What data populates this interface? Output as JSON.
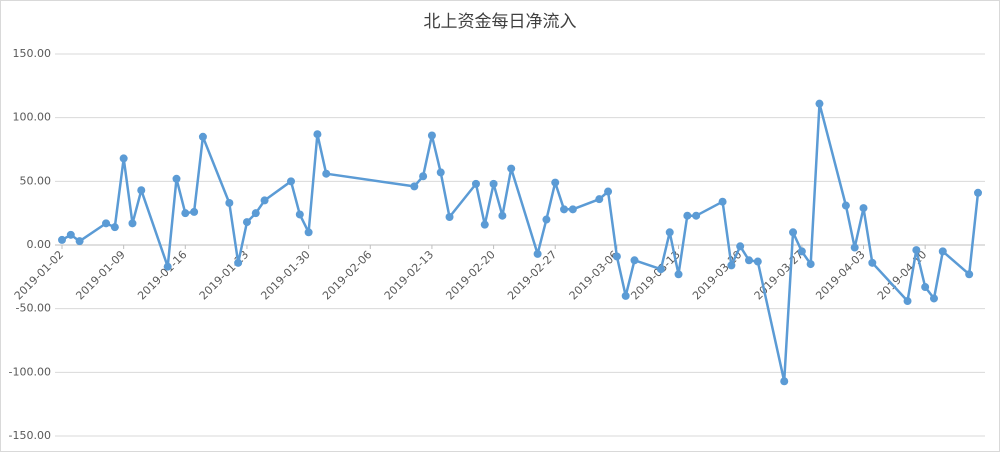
{
  "chart_data": {
    "type": "line",
    "title": "北上资金每日净流入",
    "x": [
      "2019-01-02",
      "2019-01-03",
      "2019-01-04",
      "2019-01-07",
      "2019-01-08",
      "2019-01-09",
      "2019-01-10",
      "2019-01-11",
      "2019-01-14",
      "2019-01-15",
      "2019-01-16",
      "2019-01-17",
      "2019-01-18",
      "2019-01-21",
      "2019-01-22",
      "2019-01-23",
      "2019-01-24",
      "2019-01-25",
      "2019-01-28",
      "2019-01-29",
      "2019-01-30",
      "2019-01-31",
      "2019-02-01",
      "2019-02-11",
      "2019-02-12",
      "2019-02-13",
      "2019-02-14",
      "2019-02-15",
      "2019-02-18",
      "2019-02-19",
      "2019-02-20",
      "2019-02-21",
      "2019-02-22",
      "2019-02-25",
      "2019-02-26",
      "2019-02-27",
      "2019-02-28",
      "2019-03-01",
      "2019-03-04",
      "2019-03-05",
      "2019-03-06",
      "2019-03-07",
      "2019-03-08",
      "2019-03-11",
      "2019-03-12",
      "2019-03-13",
      "2019-03-14",
      "2019-03-15",
      "2019-03-18",
      "2019-03-19",
      "2019-03-20",
      "2019-03-21",
      "2019-03-22",
      "2019-03-25",
      "2019-03-26",
      "2019-03-27",
      "2019-03-28",
      "2019-03-29",
      "2019-04-01",
      "2019-04-02",
      "2019-04-03",
      "2019-04-04",
      "2019-04-08",
      "2019-04-09",
      "2019-04-10",
      "2019-04-11",
      "2019-04-12",
      "2019-04-15",
      "2019-04-16"
    ],
    "series": [
      {
        "color": "#5b9bd5",
        "values": [
          4,
          8,
          3,
          17,
          14,
          68,
          17,
          43,
          -17,
          52,
          25,
          26,
          85,
          33,
          -14,
          18,
          25,
          35,
          50,
          24,
          10,
          87,
          56,
          46,
          54,
          86,
          57,
          22,
          48,
          16,
          48,
          23,
          60,
          -7,
          20,
          49,
          28,
          28,
          36,
          42,
          -9,
          -40,
          -12,
          -19,
          10,
          -23,
          23,
          23,
          34,
          -16,
          -1,
          -12,
          -13,
          -107,
          10,
          -5,
          -15,
          111,
          31,
          -2,
          29,
          -14,
          -44,
          -4,
          -33,
          -42,
          -5,
          -23,
          41
        ]
      }
    ],
    "xlim": [
      "2019-01-02",
      "2019-04-16"
    ],
    "xticks": [
      "2019-01-02",
      "2019-01-09",
      "2019-01-16",
      "2019-01-23",
      "2019-01-30",
      "2019-02-06",
      "2019-02-13",
      "2019-02-20",
      "2019-02-27",
      "2019-03-06",
      "2019-03-13",
      "2019-03-20",
      "2019-03-27",
      "2019-04-03",
      "2019-04-10"
    ],
    "ylim": [
      -150,
      150
    ],
    "yticks": [
      {
        "value": -150,
        "label": "-150.00"
      },
      {
        "value": -100,
        "label": "-100.00"
      },
      {
        "value": -50,
        "label": "-50.00"
      },
      {
        "value": 0,
        "label": "0.00"
      },
      {
        "value": 50,
        "label": "50.00"
      },
      {
        "value": 100,
        "label": "100.00"
      },
      {
        "value": 150,
        "label": "150.00"
      }
    ],
    "grid": true
  }
}
